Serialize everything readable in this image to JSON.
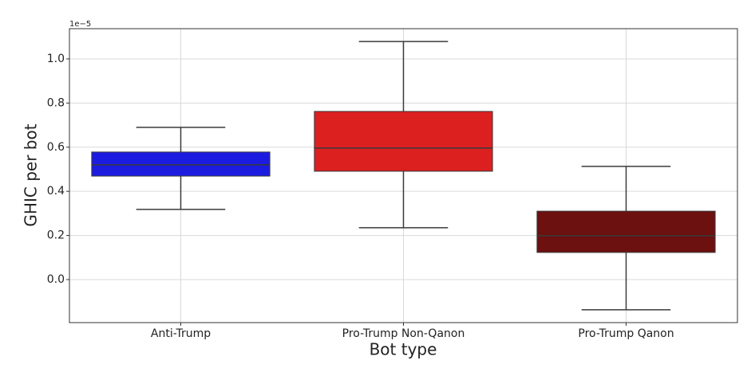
{
  "chart_data": {
    "type": "box",
    "x_label": "Bot type",
    "y_label": "GHIC per bot",
    "y_offset_label": "1e−5",
    "categories": [
      "Anti-Trump",
      "Pro-Trump Non-Qanon",
      "Pro-Trump Qanon"
    ],
    "colors": [
      "#1c1ce0",
      "#dc1f1f",
      "#6c1010"
    ],
    "whislo": [
      0.318,
      0.235,
      -0.137
    ],
    "q1": [
      0.469,
      0.491,
      0.123
    ],
    "med": [
      0.52,
      0.596,
      0.199
    ],
    "q3": [
      0.578,
      0.762,
      0.31
    ],
    "whishi": [
      0.69,
      1.079,
      0.513
    ],
    "ylim": [
      -0.195,
      1.137
    ],
    "yticks": [
      {
        "value": 0,
        "label": "0.0"
      },
      0.2,
      0.4,
      0.6,
      0.8,
      {
        "value": 1,
        "label": "1.0"
      }
    ],
    "grid": true
  }
}
